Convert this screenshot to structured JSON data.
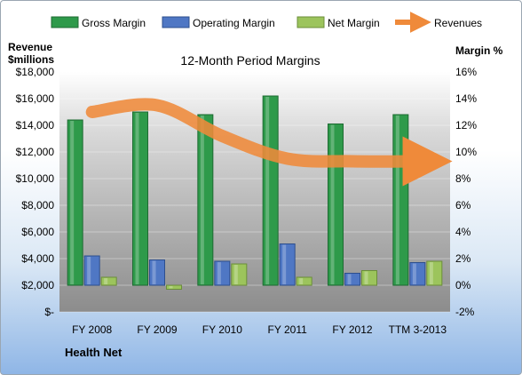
{
  "chart_data": {
    "type": "bar",
    "title": "12-Month Period Margins",
    "company": "Health Net",
    "y_left_label_line1": "Revenue",
    "y_left_label_line2": "$millions",
    "y_right_label": "Margin %",
    "categories": [
      "FY 2008",
      "FY 2009",
      "FY 2010",
      "FY 2011",
      "FY 2012",
      "TTM 3-2013"
    ],
    "left_axis": {
      "min": 0,
      "max": 18000,
      "step": 2000,
      "tick_labels": [
        "$-",
        "$2,000",
        "$4,000",
        "$6,000",
        "$8,000",
        "$10,000",
        "$12,000",
        "$14,000",
        "$16,000",
        "$18,000"
      ]
    },
    "right_axis": {
      "min": -2,
      "max": 16,
      "step": 2,
      "tick_labels": [
        "-2%",
        "0%",
        "2%",
        "4%",
        "6%",
        "8%",
        "10%",
        "12%",
        "14%",
        "16%"
      ]
    },
    "series": [
      {
        "name": "Gross Margin",
        "axis": "right",
        "color": "#2e9a4a",
        "values": [
          12.4,
          13.0,
          12.8,
          14.2,
          12.1,
          12.8
        ]
      },
      {
        "name": "Operating Margin",
        "axis": "right",
        "color": "#4f77c4",
        "values": [
          2.2,
          1.9,
          1.8,
          3.1,
          0.9,
          1.7
        ]
      },
      {
        "name": "Net Margin",
        "axis": "right",
        "color": "#9cc45c",
        "values": [
          0.6,
          -0.3,
          1.6,
          0.6,
          1.1,
          1.8
        ]
      },
      {
        "name": "Revenues",
        "axis": "left",
        "type": "line",
        "color": "#ef8a3a",
        "values": [
          15000,
          15500,
          13200,
          11500,
          11300,
          11300
        ]
      }
    ],
    "grid": true,
    "legend_position": "top"
  }
}
